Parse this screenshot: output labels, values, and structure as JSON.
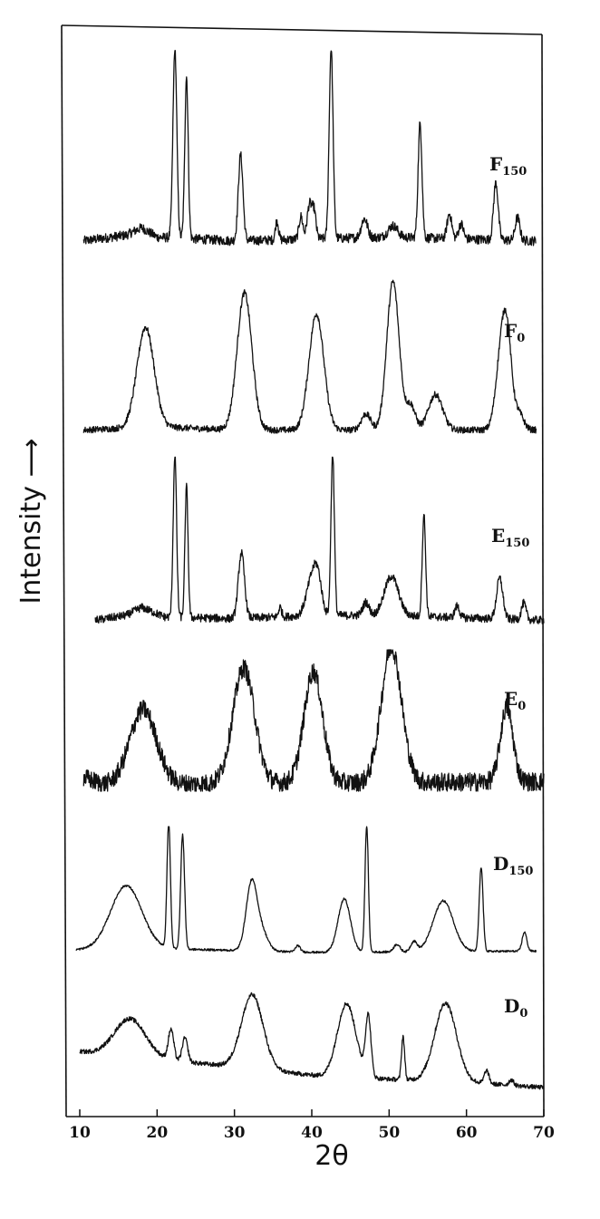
{
  "chart_data": {
    "type": "line",
    "title": "",
    "xlabel": "2θ",
    "ylabel": "Intensity ⟶",
    "xlim": [
      10,
      70
    ],
    "xticks": [
      10,
      20,
      30,
      40,
      50,
      60,
      70
    ],
    "grid": false,
    "legend": "none",
    "y_units": "arbitrary (stacked, relative intensity 0-1)",
    "series": [
      {
        "name": "F150",
        "label_main": "F",
        "label_sub": "150",
        "x_range": [
          10.5,
          69
        ],
        "background": [
          [
            10.5,
            0.02
          ],
          [
            16,
            0.05
          ],
          [
            18,
            0.09
          ],
          [
            20,
            0.04
          ],
          [
            30,
            0.02
          ],
          [
            50,
            0.04
          ],
          [
            69,
            0.02
          ]
        ],
        "peaks": [
          {
            "x": 22.3,
            "h": 1.0,
            "w": 0.25
          },
          {
            "x": 23.8,
            "h": 0.85,
            "w": 0.22
          },
          {
            "x": 30.8,
            "h": 0.45,
            "w": 0.3
          },
          {
            "x": 35.5,
            "h": 0.1,
            "w": 0.2
          },
          {
            "x": 38.6,
            "h": 0.12,
            "w": 0.25
          },
          {
            "x": 39.7,
            "h": 0.18,
            "w": 0.3
          },
          {
            "x": 40.3,
            "h": 0.14,
            "w": 0.25
          },
          {
            "x": 42.5,
            "h": 1.0,
            "w": 0.25
          },
          {
            "x": 46.8,
            "h": 0.1,
            "w": 0.4
          },
          {
            "x": 50.5,
            "h": 0.06,
            "w": 0.6
          },
          {
            "x": 54.0,
            "h": 0.6,
            "w": 0.25
          },
          {
            "x": 57.8,
            "h": 0.13,
            "w": 0.3
          },
          {
            "x": 59.3,
            "h": 0.08,
            "w": 0.3
          },
          {
            "x": 63.8,
            "h": 0.3,
            "w": 0.3
          },
          {
            "x": 66.6,
            "h": 0.12,
            "w": 0.3
          }
        ],
        "noise": 0.025
      },
      {
        "name": "F0",
        "label_main": "F",
        "label_sub": "0",
        "x_range": [
          10.5,
          69
        ],
        "background": [
          [
            10.5,
            0.02
          ],
          [
            20,
            0.04
          ],
          [
            30,
            0.02
          ],
          [
            69,
            0.02
          ]
        ],
        "peaks": [
          {
            "x": 18.5,
            "h": 0.62,
            "w": 1.1
          },
          {
            "x": 31.3,
            "h": 0.85,
            "w": 0.95
          },
          {
            "x": 40.6,
            "h": 0.72,
            "w": 0.95
          },
          {
            "x": 47.0,
            "h": 0.1,
            "w": 0.6
          },
          {
            "x": 50.5,
            "h": 0.92,
            "w": 0.8
          },
          {
            "x": 52.8,
            "h": 0.15,
            "w": 0.6
          },
          {
            "x": 56.0,
            "h": 0.22,
            "w": 0.9
          },
          {
            "x": 64.5,
            "h": 0.45,
            "w": 0.7
          },
          {
            "x": 65.3,
            "h": 0.45,
            "w": 0.6
          },
          {
            "x": 66.8,
            "h": 0.1,
            "w": 0.6
          }
        ],
        "noise": 0.02
      },
      {
        "name": "E150",
        "label_main": "E",
        "label_sub": "150",
        "x_range": [
          12,
          70
        ],
        "background": [
          [
            12,
            0.02
          ],
          [
            16,
            0.05
          ],
          [
            18,
            0.1
          ],
          [
            21,
            0.04
          ],
          [
            30,
            0.03
          ],
          [
            41,
            0.05
          ],
          [
            50,
            0.05
          ],
          [
            70,
            0.02
          ]
        ],
        "peaks": [
          {
            "x": 22.3,
            "h": 1.0,
            "w": 0.22
          },
          {
            "x": 23.8,
            "h": 0.8,
            "w": 0.2
          },
          {
            "x": 30.9,
            "h": 0.4,
            "w": 0.4
          },
          {
            "x": 35.9,
            "h": 0.06,
            "w": 0.2
          },
          {
            "x": 40.0,
            "h": 0.22,
            "w": 0.7
          },
          {
            "x": 40.8,
            "h": 0.18,
            "w": 0.5
          },
          {
            "x": 42.7,
            "h": 1.0,
            "w": 0.22
          },
          {
            "x": 47.0,
            "h": 0.08,
            "w": 0.4
          },
          {
            "x": 50.3,
            "h": 0.24,
            "w": 0.9
          },
          {
            "x": 54.5,
            "h": 0.62,
            "w": 0.22
          },
          {
            "x": 58.8,
            "h": 0.07,
            "w": 0.3
          },
          {
            "x": 64.3,
            "h": 0.25,
            "w": 0.4
          },
          {
            "x": 67.4,
            "h": 0.1,
            "w": 0.3
          }
        ],
        "noise": 0.025
      },
      {
        "name": "E0",
        "label_main": "E",
        "label_sub": "0",
        "x_range": [
          10.5,
          70
        ],
        "background": [
          [
            10.5,
            0.08
          ],
          [
            13,
            0.03
          ],
          [
            70,
            0.05
          ]
        ],
        "peaks": [
          {
            "x": 18.2,
            "h": 0.55,
            "w": 1.7
          },
          {
            "x": 31.2,
            "h": 0.85,
            "w": 1.4
          },
          {
            "x": 40.2,
            "h": 0.82,
            "w": 1.2
          },
          {
            "x": 50.3,
            "h": 1.0,
            "w": 1.3
          },
          {
            "x": 65.2,
            "h": 0.55,
            "w": 0.8
          }
        ],
        "noise": 0.07
      },
      {
        "name": "D150",
        "label_main": "D",
        "label_sub": "150",
        "x_range": [
          9.5,
          69
        ],
        "background": [
          [
            9.5,
            0.05
          ],
          [
            20,
            0.06
          ],
          [
            27,
            0.05
          ],
          [
            41,
            0.03
          ],
          [
            69,
            0.04
          ]
        ],
        "peaks": [
          {
            "x": 16.0,
            "h": 0.5,
            "w": 2.0
          },
          {
            "x": 21.5,
            "h": 1.0,
            "w": 0.22
          },
          {
            "x": 23.3,
            "h": 0.9,
            "w": 0.25
          },
          {
            "x": 32.2,
            "h": 0.52,
            "w": 0.7
          },
          {
            "x": 33.5,
            "h": 0.15,
            "w": 0.8
          },
          {
            "x": 38.2,
            "h": 0.05,
            "w": 0.3
          },
          {
            "x": 44.2,
            "h": 0.42,
            "w": 0.8
          },
          {
            "x": 47.1,
            "h": 1.0,
            "w": 0.22
          },
          {
            "x": 51.0,
            "h": 0.06,
            "w": 0.4
          },
          {
            "x": 53.2,
            "h": 0.08,
            "w": 0.4
          },
          {
            "x": 57.0,
            "h": 0.4,
            "w": 1.3
          },
          {
            "x": 61.9,
            "h": 0.66,
            "w": 0.25
          },
          {
            "x": 67.5,
            "h": 0.15,
            "w": 0.3
          }
        ],
        "noise": 0.008
      },
      {
        "name": "D0",
        "label_main": "D",
        "label_sub": "0",
        "x_range": [
          10,
          70
        ],
        "background": [
          [
            10,
            0.33
          ],
          [
            14,
            0.3
          ],
          [
            26,
            0.22
          ],
          [
            42,
            0.1
          ],
          [
            60,
            0.05
          ],
          [
            70,
            0.0
          ]
        ],
        "peaks": [
          {
            "x": 16.5,
            "h": 0.35,
            "w": 2.0
          },
          {
            "x": 21.8,
            "h": 0.28,
            "w": 0.35
          },
          {
            "x": 23.6,
            "h": 0.22,
            "w": 0.35
          },
          {
            "x": 32.3,
            "h": 0.68,
            "w": 1.4
          },
          {
            "x": 44.5,
            "h": 0.68,
            "w": 1.2
          },
          {
            "x": 47.3,
            "h": 0.55,
            "w": 0.35
          },
          {
            "x": 51.8,
            "h": 0.4,
            "w": 0.2
          },
          {
            "x": 57.3,
            "h": 0.72,
            "w": 1.4
          },
          {
            "x": 62.6,
            "h": 0.12,
            "w": 0.3
          },
          {
            "x": 65.8,
            "h": 0.05,
            "w": 0.3
          }
        ],
        "noise": 0.02
      }
    ]
  }
}
